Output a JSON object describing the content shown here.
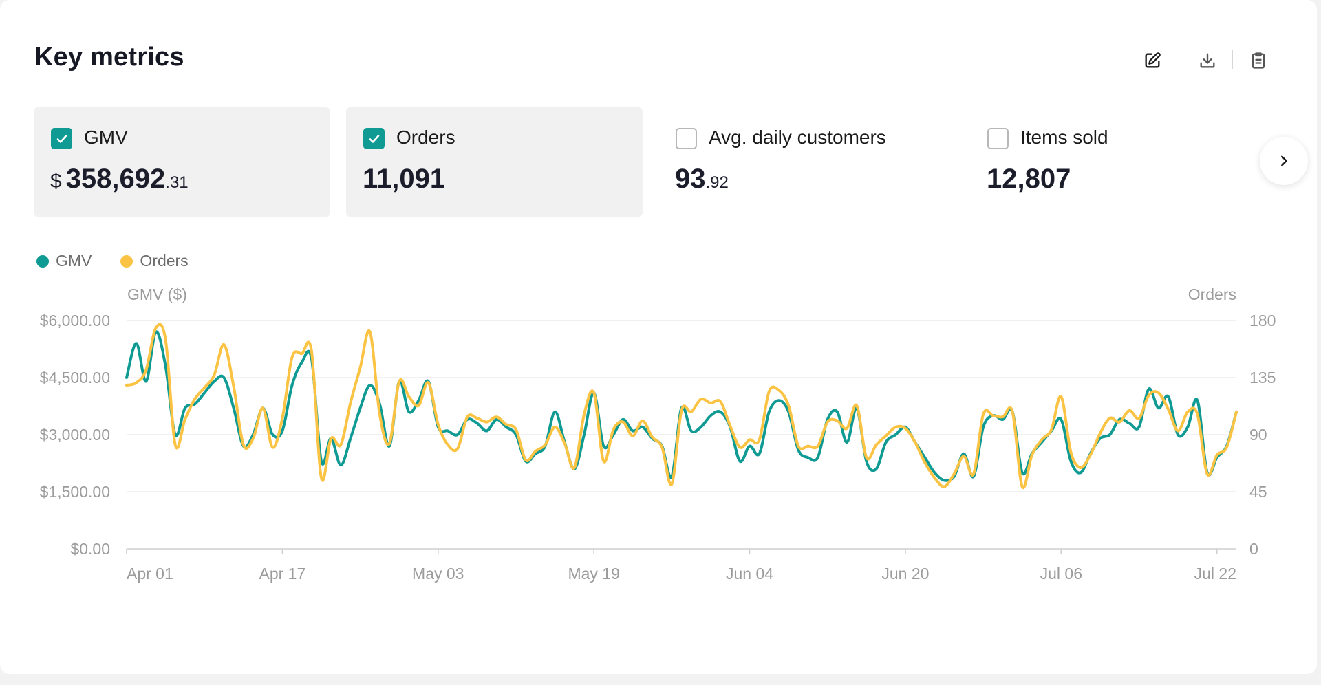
{
  "header": {
    "title": "Key metrics",
    "actions": [
      {
        "icon": "edit-icon",
        "name": "edit-button"
      },
      {
        "icon": "download-icon",
        "name": "download-button"
      },
      {
        "icon": "clipboard-icon",
        "name": "clipboard-button"
      }
    ]
  },
  "metrics": [
    {
      "label": "GMV",
      "currency": "$",
      "int": "358,692",
      "dec": ".31",
      "selected": true
    },
    {
      "label": "Orders",
      "currency": "",
      "int": "11,091",
      "dec": "",
      "selected": true
    },
    {
      "label": "Avg. daily customers",
      "currency": "",
      "int": "93",
      "dec": ".92",
      "selected": false
    },
    {
      "label": "Items sold",
      "currency": "",
      "int": "12,807",
      "dec": "",
      "selected": false
    }
  ],
  "legend": [
    {
      "label": "GMV",
      "color": "#0f9a93"
    },
    {
      "label": "Orders",
      "color": "#fbc343"
    }
  ],
  "chart_data": {
    "type": "line",
    "left_axis_title": "GMV ($)",
    "right_axis_title": "Orders",
    "left_ticks": [
      "$0.00",
      "$1,500.00",
      "$3,000.00",
      "$4,500.00",
      "$6,000.00"
    ],
    "right_ticks": [
      "0",
      "45",
      "90",
      "135",
      "180"
    ],
    "ylim_left": [
      0,
      6000
    ],
    "ylim_right": [
      0,
      180
    ],
    "x_tick_labels": [
      "Apr 01",
      "Apr 17",
      "May 03",
      "May 19",
      "Jun 04",
      "Jun 20",
      "Jul 06",
      "Jul 22"
    ],
    "x_tick_index": [
      0,
      16,
      32,
      48,
      64,
      80,
      96,
      112
    ],
    "grid": true,
    "legend_position": "top-left",
    "series": [
      {
        "name": "GMV",
        "axis": "left",
        "color": "#0f9a93",
        "values": [
          4500,
          5400,
          4400,
          5700,
          4800,
          3000,
          3700,
          3800,
          4100,
          4400,
          4500,
          3700,
          2700,
          3000,
          3700,
          3000,
          3100,
          4300,
          4900,
          5000,
          2300,
          2900,
          2200,
          2900,
          3700,
          4300,
          3800,
          2700,
          4400,
          3600,
          3900,
          4400,
          3200,
          3100,
          3000,
          3400,
          3300,
          3100,
          3400,
          3200,
          3000,
          2300,
          2500,
          2700,
          3600,
          2800,
          2100,
          3000,
          4100,
          2700,
          3000,
          3400,
          3100,
          3200,
          2900,
          2700,
          1900,
          3700,
          3100,
          3200,
          3500,
          3600,
          3200,
          2300,
          2700,
          2500,
          3600,
          3900,
          3600,
          2600,
          2400,
          2400,
          3400,
          3600,
          2800,
          3700,
          2300,
          2100,
          2800,
          3000,
          3200,
          2800,
          2400,
          2000,
          1800,
          1900,
          2500,
          1900,
          3200,
          3500,
          3400,
          3600,
          2000,
          2500,
          2800,
          3100,
          3400,
          2300,
          2000,
          2500,
          2900,
          3000,
          3400,
          3300,
          3200,
          4200,
          3700,
          4000,
          3000,
          3200,
          3900,
          2000,
          2400,
          2700,
          3600
        ]
      },
      {
        "name": "Orders",
        "axis": "right",
        "color": "#fbc343",
        "values": [
          129,
          131,
          141,
          174,
          165,
          82,
          102,
          118,
          127,
          137,
          161,
          128,
          82,
          87,
          111,
          80,
          103,
          151,
          154,
          156,
          56,
          87,
          82,
          115,
          143,
          171,
          106,
          83,
          132,
          120,
          113,
          131,
          98,
          82,
          79,
          104,
          103,
          100,
          104,
          98,
          94,
          70,
          77,
          82,
          96,
          83,
          64,
          106,
          123,
          69,
          94,
          100,
          89,
          101,
          88,
          80,
          51,
          109,
          108,
          118,
          115,
          116,
          97,
          80,
          86,
          86,
          124,
          125,
          113,
          81,
          81,
          81,
          100,
          101,
          95,
          113,
          72,
          82,
          89,
          96,
          95,
          84,
          68,
          56,
          49,
          59,
          73,
          59,
          106,
          105,
          104,
          108,
          49,
          74,
          86,
          94,
          120,
          76,
          64,
          74,
          91,
          103,
          100,
          109,
          103,
          121,
          123,
          110,
          93,
          108,
          106,
          59,
          74,
          80,
          108
        ]
      }
    ]
  }
}
